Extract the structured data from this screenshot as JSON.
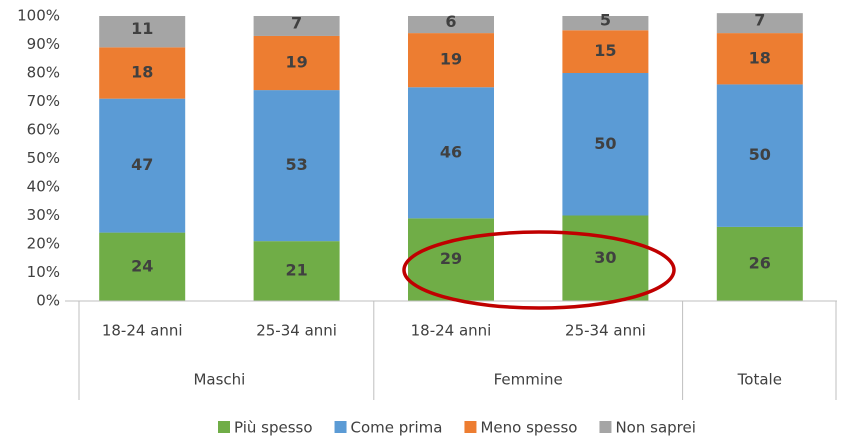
{
  "chart_data": {
    "type": "stacked_bar",
    "categories": [
      "18-24 anni",
      "25-34 anni",
      "18-24 anni",
      "25-34 anni",
      null
    ],
    "groups": [
      {
        "name": "Maschi",
        "size": 2
      },
      {
        "name": "Femmine",
        "size": 2
      },
      {
        "name": "Totale",
        "size": 1
      }
    ],
    "series": [
      {
        "name": "Più spesso",
        "color": "#70ad47",
        "values": [
          24,
          21,
          29,
          30,
          26
        ]
      },
      {
        "name": "Come prima",
        "color": "#5b9bd5",
        "values": [
          47,
          53,
          46,
          50,
          50
        ]
      },
      {
        "name": "Meno spesso",
        "color": "#ed7d31",
        "values": [
          18,
          19,
          19,
          15,
          18
        ]
      },
      {
        "name": "Non saprei",
        "color": "#a5a5a5",
        "values": [
          11,
          7,
          6,
          5,
          7
        ]
      }
    ],
    "ylim": [
      0,
      100
    ],
    "yticks": [
      {
        "value": 0,
        "label": "0%"
      },
      {
        "value": 10,
        "label": "10%"
      },
      {
        "value": 20,
        "label": "20%"
      },
      {
        "value": 30,
        "label": "30%"
      },
      {
        "value": 40,
        "label": "40%"
      },
      {
        "value": 50,
        "label": "50%"
      },
      {
        "value": 60,
        "label": "60%"
      },
      {
        "value": 70,
        "label": "70%"
      },
      {
        "value": 80,
        "label": "80%"
      },
      {
        "value": 90,
        "label": "90%"
      },
      {
        "value": 100,
        "label": "100%"
      }
    ],
    "grid": false,
    "legend": "bottom"
  }
}
